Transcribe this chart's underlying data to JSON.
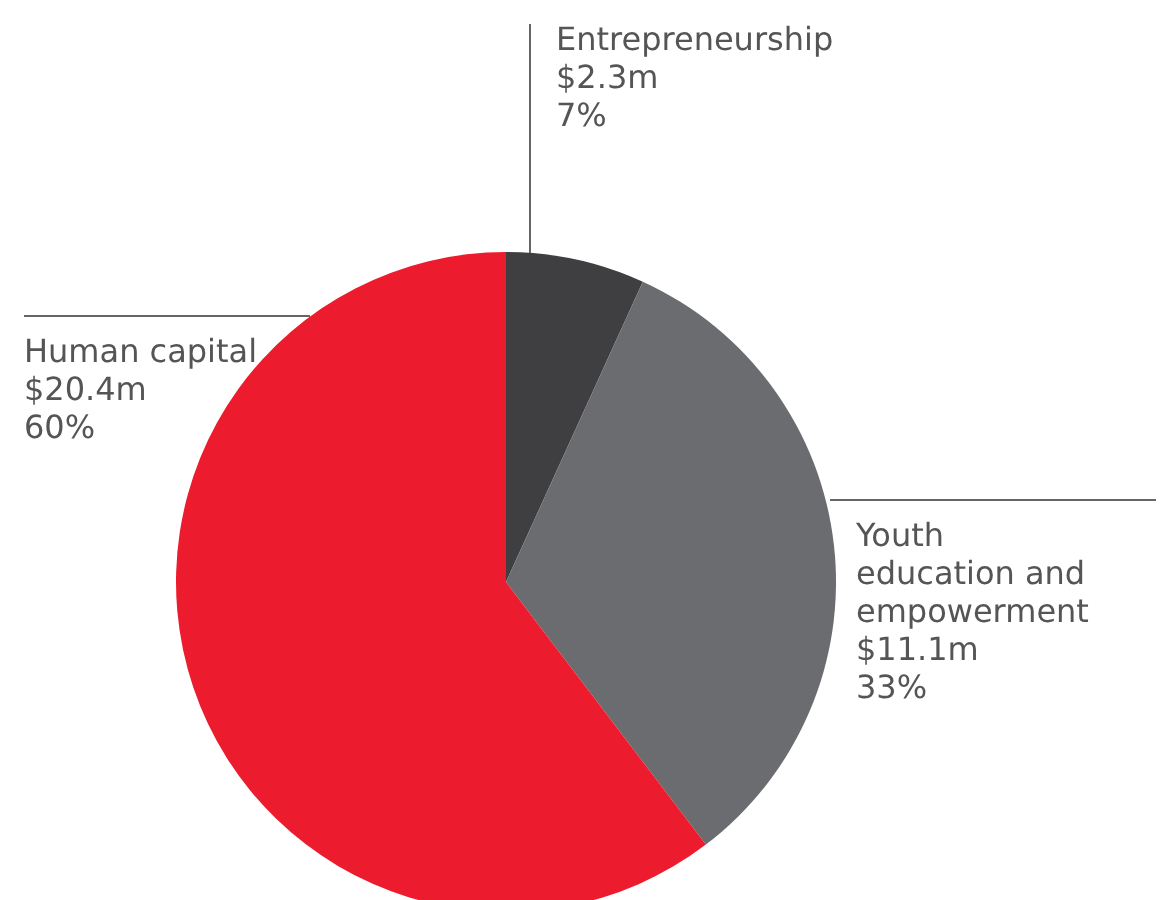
{
  "chart_data": {
    "type": "pie",
    "categories": [
      "Entrepreneurship",
      "Youth education and empowerment",
      "Human capital"
    ],
    "values": [
      2.3,
      11.1,
      20.4
    ],
    "colors": [
      "#3f3f41",
      "#6b6c6f",
      "#ec1c2e"
    ],
    "value_labels": [
      "$2.3m",
      "$11.1m",
      "$20.4m"
    ],
    "annotations": [
      "7%",
      "33%",
      "60%"
    ]
  }
}
